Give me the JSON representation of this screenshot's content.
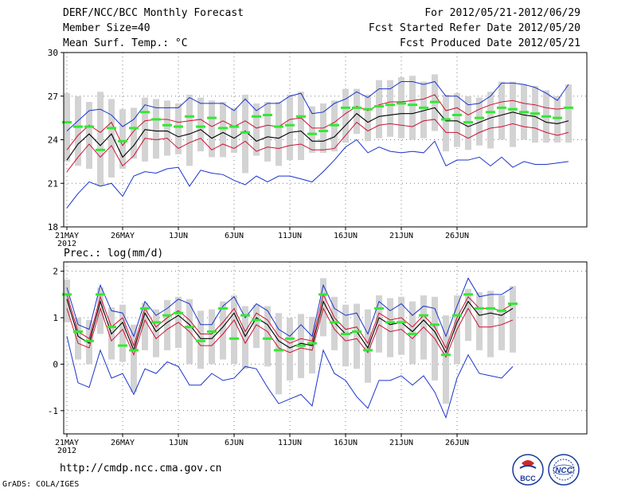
{
  "header": {
    "left": [
      "DERF/NCC/BCC Monthly Forecast",
      "Member Size=40",
      "Mean Surf. Temp.: °C"
    ],
    "right": [
      "For 2012/05/21-2012/06/29",
      "Fcst Started Refer Date 2012/05/20",
      "Fcst Produced Date 2012/05/21"
    ]
  },
  "footer": {
    "url": "http://cmdp.ncc.cma.gov.cn",
    "credit": "GrADS: COLA/IGES"
  },
  "logos": [
    {
      "name": "bcc-logo-icon",
      "text": "BCC"
    },
    {
      "name": "ncc-logo-icon",
      "text": "NCC"
    }
  ],
  "colors": {
    "bar": "#d3d3d3",
    "mean": "#000000",
    "spread": "#cc1133",
    "extreme": "#1a33cc",
    "median": "#33e833",
    "grid": "#7f7f7f"
  },
  "chart_data": [
    {
      "type": "line",
      "title": "Mean Surf. Temp.: °C",
      "xlabel": "",
      "ylabel": "°C",
      "ylim": [
        18,
        30
      ],
      "yticks": [
        18,
        21,
        24,
        27,
        30
      ],
      "xtick_labels": [
        "21MAY",
        "26MAY",
        "1JUN",
        "6JUN",
        "11JUN",
        "16JUN",
        "21JUN",
        "26JUN"
      ],
      "xtick_days": [
        1,
        6,
        11,
        16,
        21,
        26,
        31,
        36
      ],
      "year_label": "2012",
      "series": [
        {
          "name": "mean",
          "values": [
            22.6,
            23.7,
            24.4,
            23.6,
            24.4,
            22.8,
            23.6,
            24.7,
            24.6,
            24.6,
            24.2,
            24.4,
            24.7,
            24.1,
            24.5,
            24.1,
            24.6,
            23.9,
            24.2,
            24.1,
            24.5,
            24.6,
            23.9,
            23.9,
            24.2,
            25.0,
            25.8,
            25.2,
            25.6,
            25.7,
            25.8,
            25.8,
            26.0,
            26.2,
            25.3,
            25.3,
            24.9,
            25.2,
            25.5,
            25.7,
            25.9,
            25.7,
            25.6,
            25.2,
            25.1,
            25.3
          ]
        },
        {
          "name": "upper spread",
          "values": [
            23.3,
            24.3,
            25.0,
            24.5,
            25.2,
            23.6,
            24.6,
            25.3,
            25.4,
            25.4,
            25.2,
            25.3,
            25.4,
            24.9,
            25.3,
            24.9,
            25.3,
            24.8,
            25.0,
            24.9,
            25.4,
            25.5,
            24.8,
            24.8,
            25.2,
            25.8,
            26.3,
            26.0,
            26.4,
            26.6,
            26.6,
            26.7,
            26.8,
            27.1,
            26.0,
            26.2,
            25.7,
            26.1,
            26.4,
            26.6,
            26.7,
            26.5,
            26.4,
            26.2,
            26.1,
            26.2
          ]
        },
        {
          "name": "lower spread",
          "values": [
            21.8,
            22.8,
            23.7,
            22.8,
            23.6,
            22.2,
            22.9,
            24.1,
            24.0,
            24.1,
            23.4,
            23.8,
            24.1,
            23.3,
            23.7,
            23.4,
            23.9,
            23.2,
            23.5,
            23.4,
            23.6,
            23.7,
            23.3,
            23.3,
            23.4,
            24.3,
            25.2,
            24.6,
            25.0,
            25.1,
            25.0,
            24.9,
            25.3,
            25.4,
            24.5,
            24.5,
            24.1,
            24.5,
            24.8,
            24.9,
            25.1,
            24.9,
            24.8,
            24.5,
            24.3,
            24.5
          ]
        },
        {
          "name": "max",
          "values": [
            24.6,
            25.3,
            26.0,
            26.1,
            25.7,
            24.9,
            25.4,
            26.4,
            26.2,
            26.2,
            26.2,
            26.9,
            26.5,
            26.5,
            26.5,
            26.0,
            26.8,
            26.0,
            26.5,
            26.5,
            27.0,
            27.2,
            25.8,
            25.9,
            26.5,
            26.8,
            27.3,
            26.9,
            27.5,
            27.5,
            28.0,
            28.0,
            27.8,
            28.0,
            27.0,
            27.0,
            26.4,
            26.5,
            27.0,
            27.9,
            27.9,
            27.8,
            27.6,
            27.2,
            26.7,
            27.8
          ]
        },
        {
          "name": "min",
          "values": [
            19.3,
            20.3,
            21.1,
            20.8,
            21.0,
            20.1,
            21.5,
            21.8,
            21.7,
            22.0,
            22.1,
            20.8,
            21.9,
            21.7,
            21.6,
            21.2,
            20.9,
            21.5,
            21.1,
            21.5,
            21.5,
            21.3,
            21.1,
            21.8,
            22.6,
            23.5,
            24.0,
            23.1,
            23.5,
            23.2,
            23.1,
            23.2,
            23.1,
            23.9,
            22.2,
            22.6,
            22.6,
            22.8,
            22.2,
            22.8,
            22.1,
            22.5,
            22.3,
            22.3,
            22.4,
            22.5
          ]
        },
        {
          "name": "ensemble max (bar top)",
          "values": [
            27.2,
            27.0,
            26.6,
            27.3,
            26.8,
            26.1,
            26.2,
            26.9,
            26.8,
            26.7,
            26.5,
            27.1,
            26.9,
            26.7,
            26.6,
            26.2,
            27.1,
            26.5,
            26.6,
            26.6,
            27.1,
            27.3,
            26.3,
            26.5,
            26.7,
            27.5,
            27.5,
            27.1,
            28.1,
            28.1,
            28.3,
            28.4,
            28.0,
            28.5,
            27.1,
            27.2,
            27.0,
            26.9,
            27.3,
            28.0,
            28.0,
            27.8,
            27.7,
            27.4,
            27.0,
            27.8
          ]
        },
        {
          "name": "ensemble min (bar bottom)",
          "values": [
            22.5,
            22.2,
            22.0,
            20.8,
            21.4,
            22.0,
            22.7,
            22.5,
            22.7,
            22.9,
            23.0,
            22.2,
            23.2,
            22.8,
            22.8,
            23.1,
            21.7,
            22.9,
            22.5,
            22.2,
            22.6,
            22.6,
            23.1,
            23.1,
            23.2,
            23.8,
            24.4,
            23.9,
            24.1,
            24.2,
            24.1,
            24.0,
            24.1,
            24.6,
            23.2,
            23.5,
            23.3,
            23.6,
            23.4,
            24.0,
            23.5,
            24.0,
            23.8,
            23.8,
            23.8,
            23.8
          ]
        },
        {
          "name": "median marker",
          "values": [
            25.2,
            24.9,
            24.9,
            23.3,
            24.8,
            23.9,
            24.8,
            25.9,
            25.4,
            25.0,
            24.9,
            25.6,
            24.9,
            25.5,
            24.8,
            24.9,
            24.5,
            25.6,
            25.7,
            24.9,
            25.0,
            25.6,
            24.4,
            24.6,
            25.0,
            26.2,
            26.2,
            26.1,
            26.3,
            26.4,
            26.5,
            26.4,
            26.2,
            26.6,
            25.4,
            25.7,
            25.2,
            25.5,
            25.9,
            26.2,
            26.1,
            25.9,
            25.8,
            25.6,
            25.5,
            26.2
          ]
        }
      ]
    },
    {
      "type": "line",
      "title": "Prec.: log(mm/d)",
      "xlabel": "",
      "ylabel": "log(mm/d)",
      "ylim": [
        -1.5,
        2.2
      ],
      "yticks": [
        -1,
        0,
        1,
        2
      ],
      "xtick_labels": [
        "21MAY",
        "26MAY",
        "1JUN",
        "6JUN",
        "11JUN",
        "16JUN",
        "21JUN",
        "26JUN"
      ],
      "xtick_days": [
        1,
        6,
        11,
        16,
        21,
        26,
        31,
        36
      ],
      "year_label": "2012",
      "series": [
        {
          "name": "mean",
          "values": [
            1.4,
            0.6,
            0.45,
            1.35,
            0.65,
            0.9,
            0.3,
            1.1,
            0.7,
            0.9,
            1.05,
            0.85,
            0.55,
            0.55,
            0.8,
            1.1,
            0.6,
            1.0,
            0.85,
            0.5,
            0.35,
            0.45,
            0.4,
            1.35,
            0.9,
            0.65,
            0.7,
            0.35,
            1.0,
            0.85,
            0.9,
            0.7,
            0.95,
            0.7,
            0.25,
            0.9,
            1.35,
            1.05,
            1.1,
            1.05,
            1.2
          ]
        },
        {
          "name": "upper spread",
          "values": [
            1.5,
            0.7,
            0.55,
            1.45,
            0.8,
            1.0,
            0.4,
            1.2,
            0.8,
            1.0,
            1.15,
            0.95,
            0.65,
            0.65,
            0.9,
            1.2,
            0.7,
            1.1,
            0.95,
            0.6,
            0.45,
            0.55,
            0.5,
            1.5,
            1.0,
            0.75,
            0.8,
            0.45,
            1.1,
            0.95,
            1.0,
            0.8,
            1.05,
            0.8,
            0.35,
            1.0,
            1.45,
            1.2,
            1.2,
            1.15,
            1.3
          ]
        },
        {
          "name": "lower spread",
          "values": [
            1.2,
            0.45,
            0.35,
            1.2,
            0.5,
            0.75,
            0.2,
            0.95,
            0.55,
            0.75,
            0.9,
            0.7,
            0.4,
            0.4,
            0.65,
            0.95,
            0.45,
            0.85,
            0.7,
            0.35,
            0.25,
            0.35,
            0.3,
            1.2,
            0.75,
            0.5,
            0.55,
            0.25,
            0.85,
            0.7,
            0.75,
            0.55,
            0.8,
            0.55,
            0.15,
            0.75,
            1.2,
            0.8,
            0.8,
            0.85,
            0.95
          ]
        },
        {
          "name": "max",
          "values": [
            1.65,
            0.85,
            0.75,
            1.7,
            1.15,
            1.1,
            0.6,
            1.35,
            1.05,
            1.2,
            1.4,
            1.3,
            0.85,
            0.85,
            1.25,
            1.45,
            1.0,
            1.3,
            1.15,
            0.75,
            0.6,
            0.85,
            0.6,
            1.7,
            1.2,
            1.05,
            1.1,
            0.65,
            1.35,
            1.15,
            1.3,
            1.05,
            1.25,
            1.2,
            0.6,
            1.25,
            1.85,
            1.45,
            1.5,
            1.5,
            1.65
          ]
        },
        {
          "name": "min",
          "values": [
            0.6,
            -0.4,
            -0.5,
            0.3,
            -0.3,
            -0.2,
            -0.65,
            -0.1,
            -0.2,
            0.05,
            -0.05,
            -0.45,
            -0.45,
            -0.2,
            -0.35,
            -0.3,
            -0.05,
            -0.1,
            -0.5,
            -0.85,
            -0.75,
            -0.65,
            -0.9,
            0.3,
            -0.2,
            -0.35,
            -0.7,
            -0.95,
            -0.35,
            -0.35,
            -0.25,
            -0.45,
            -0.25,
            -0.6,
            -1.15,
            -0.3,
            0.2,
            -0.2,
            -0.25,
            -0.3,
            -0.05
          ]
        },
        {
          "name": "ensemble max (bar top)",
          "values": [
            1.82,
            1.0,
            0.95,
            1.65,
            1.22,
            1.28,
            0.85,
            1.32,
            1.18,
            1.38,
            1.45,
            1.4,
            1.15,
            1.18,
            1.35,
            1.48,
            1.25,
            1.28,
            1.25,
            1.1,
            1.0,
            1.08,
            1.02,
            1.85,
            1.45,
            1.28,
            1.3,
            1.18,
            1.48,
            1.42,
            1.45,
            1.35,
            1.48,
            1.45,
            1.05,
            1.48,
            1.62,
            1.55,
            1.58,
            1.48,
            1.68
          ]
        },
        {
          "name": "ensemble min (bar bottom)",
          "values": [
            0.9,
            0.1,
            0.0,
            0.65,
            0.1,
            0.05,
            -0.6,
            0.3,
            0.15,
            0.3,
            0.35,
            0.0,
            -0.1,
            0.0,
            0.1,
            0.0,
            -0.1,
            0.35,
            -0.05,
            -0.65,
            -0.35,
            -0.3,
            -0.2,
            0.6,
            0.3,
            -0.05,
            -0.1,
            -0.4,
            0.25,
            0.15,
            0.2,
            0.0,
            0.1,
            -0.35,
            -0.85,
            0.0,
            0.5,
            0.3,
            0.15,
            0.3,
            0.25
          ]
        },
        {
          "name": "median marker",
          "values": [
            1.5,
            0.7,
            0.5,
            1.5,
            0.8,
            0.4,
            0.3,
            1.2,
            0.9,
            1.05,
            1.1,
            0.8,
            0.5,
            0.7,
            1.2,
            0.55,
            1.05,
            0.95,
            0.55,
            0.3,
            0.55,
            0.4,
            0.45,
            1.5,
            0.9,
            0.65,
            0.7,
            0.3,
            1.2,
            0.9,
            0.9,
            0.65,
            1.05,
            0.85,
            0.2,
            1.05,
            1.5,
            1.2,
            1.2,
            1.15,
            1.3
          ]
        }
      ]
    }
  ]
}
